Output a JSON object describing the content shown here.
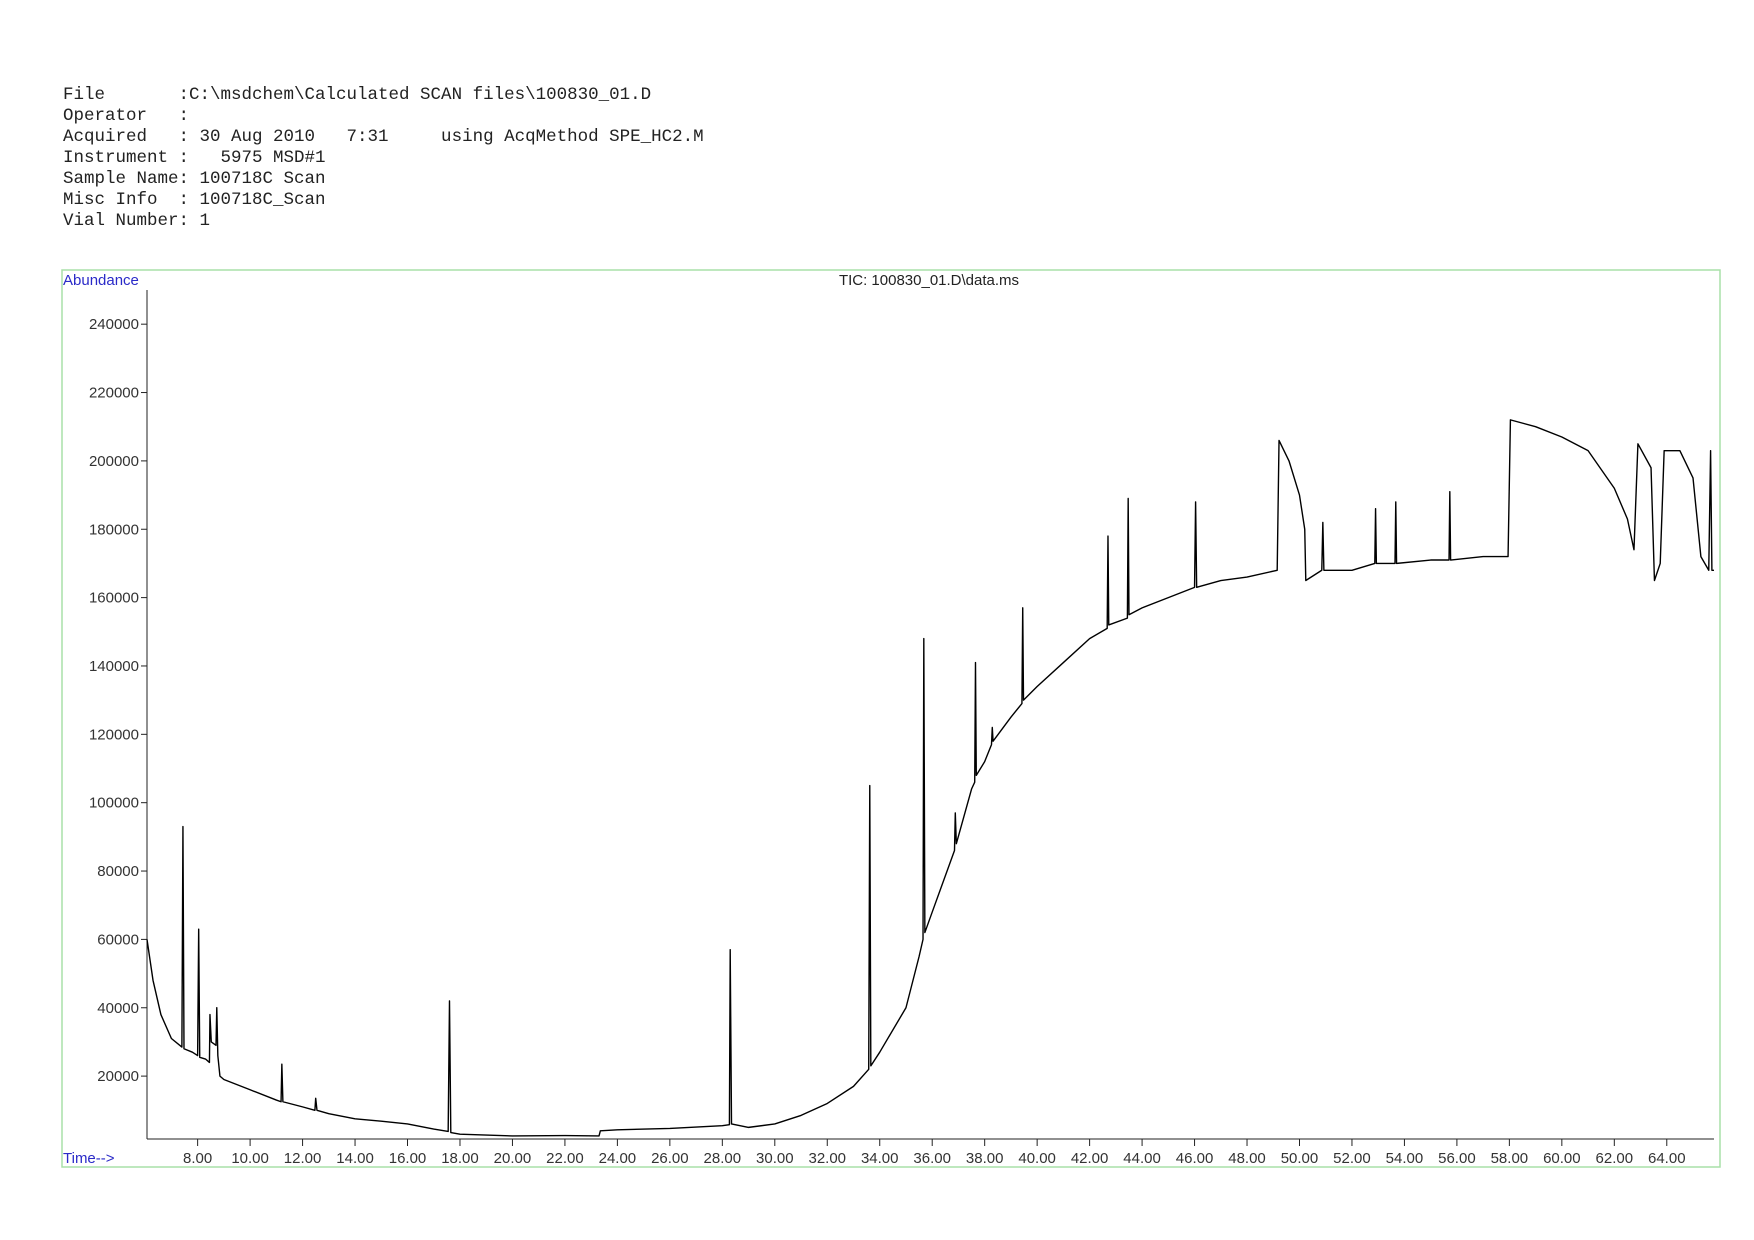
{
  "header": {
    "lines": [
      "File       :C:\\msdchem\\Calculated SCAN files\\100830_01.D",
      "Operator   :",
      "Acquired   : 30 Aug 2010   7:31     using AcqMethod SPE_HC2.M",
      "Instrument :   5975 MSD#1",
      "Sample Name: 100718C Scan",
      "Misc Info  : 100718C_Scan",
      "Vial Number: 1"
    ]
  },
  "chart_data": {
    "type": "line",
    "title": "TIC: 100830_01.D\\data.ms",
    "y_label": "Abundance",
    "x_label": "Time-->",
    "color": "#000000",
    "xlim": [
      6.07,
      65.8
    ],
    "ylim": [
      1600,
      250000
    ],
    "xticks": [
      {
        "value": 8,
        "label": "8.00"
      },
      {
        "value": 10,
        "label": "10.00"
      },
      {
        "value": 12,
        "label": "12.00"
      },
      {
        "value": 14,
        "label": "14.00"
      },
      {
        "value": 16,
        "label": "16.00"
      },
      {
        "value": 18,
        "label": "18.00"
      },
      {
        "value": 20,
        "label": "20.00"
      },
      {
        "value": 22,
        "label": "22.00"
      },
      {
        "value": 24,
        "label": "24.00"
      },
      {
        "value": 26,
        "label": "26.00"
      },
      {
        "value": 28,
        "label": "28.00"
      },
      {
        "value": 30,
        "label": "30.00"
      },
      {
        "value": 32,
        "label": "32.00"
      },
      {
        "value": 34,
        "label": "34.00"
      },
      {
        "value": 36,
        "label": "36.00"
      },
      {
        "value": 38,
        "label": "38.00"
      },
      {
        "value": 40,
        "label": "40.00"
      },
      {
        "value": 42,
        "label": "42.00"
      },
      {
        "value": 44,
        "label": "44.00"
      },
      {
        "value": 46,
        "label": "46.00"
      },
      {
        "value": 48,
        "label": "48.00"
      },
      {
        "value": 50,
        "label": "50.00"
      },
      {
        "value": 52,
        "label": "52.00"
      },
      {
        "value": 54,
        "label": "54.00"
      },
      {
        "value": 56,
        "label": "56.00"
      },
      {
        "value": 58,
        "label": "58.00"
      },
      {
        "value": 60,
        "label": "60.00"
      },
      {
        "value": 62,
        "label": "62.00"
      },
      {
        "value": 64,
        "label": "64.00"
      }
    ],
    "yticks": [
      20000,
      40000,
      60000,
      80000,
      100000,
      120000,
      140000,
      160000,
      180000,
      200000,
      220000,
      240000
    ],
    "x": [
      6.07,
      6.3,
      6.6,
      7.0,
      7.4,
      7.44,
      7.48,
      7.8,
      8.0,
      8.04,
      8.08,
      8.3,
      8.45,
      8.47,
      8.52,
      8.7,
      8.73,
      8.77,
      8.85,
      9.0,
      10.0,
      11.0,
      11.18,
      11.21,
      11.25,
      12.0,
      12.47,
      12.5,
      12.55,
      13.0,
      14.0,
      15.0,
      16.0,
      17.0,
      17.55,
      17.6,
      17.65,
      18.0,
      20.0,
      22.0,
      23.3,
      23.35,
      24.0,
      26.0,
      28.0,
      28.27,
      28.3,
      28.35,
      29.0,
      30.0,
      31.0,
      32.0,
      33.0,
      33.58,
      33.62,
      33.66,
      34.0,
      35.0,
      35.5,
      35.65,
      35.68,
      35.72,
      36.0,
      36.85,
      36.88,
      36.92,
      37.5,
      37.62,
      37.65,
      37.68,
      38.0,
      38.26,
      38.29,
      38.32,
      39.0,
      39.42,
      39.45,
      39.48,
      40.0,
      41.0,
      42.0,
      42.67,
      42.7,
      42.73,
      43.44,
      43.47,
      43.5,
      44.0,
      45.0,
      46.0,
      46.04,
      46.08,
      47.0,
      48.0,
      49.15,
      49.22,
      49.6,
      50.0,
      50.2,
      50.24,
      50.85,
      50.89,
      50.93,
      52.0,
      52.87,
      52.9,
      52.93,
      53.64,
      53.67,
      53.7,
      55.0,
      55.7,
      55.73,
      55.76,
      57.0,
      57.95,
      58.04,
      59.0,
      60.0,
      61.0,
      62.0,
      62.5,
      62.75,
      62.9,
      63.4,
      63.53,
      63.75,
      63.9,
      64.5,
      65.0,
      65.3,
      65.6,
      65.67,
      65.72,
      65.8
    ],
    "values": [
      60000,
      48000,
      38000,
      31000,
      28500,
      93000,
      28000,
      27000,
      26000,
      63000,
      25500,
      25000,
      24000,
      38000,
      30000,
      29000,
      40000,
      26000,
      20000,
      19000,
      16000,
      13000,
      12500,
      23500,
      12500,
      11000,
      10000,
      13500,
      10000,
      9000,
      7500,
      6800,
      6000,
      4500,
      3800,
      42000,
      3500,
      3000,
      2500,
      2600,
      2500,
      4000,
      4300,
      4700,
      5500,
      5800,
      57000,
      6000,
      5000,
      6000,
      8500,
      12000,
      17000,
      22000,
      105000,
      23000,
      27000,
      40000,
      55000,
      60000,
      148000,
      62000,
      68000,
      86000,
      97000,
      88000,
      104000,
      106000,
      141000,
      108000,
      112000,
      117000,
      122000,
      118000,
      125000,
      129000,
      157000,
      130000,
      134000,
      141000,
      148000,
      151000,
      178000,
      152000,
      154000,
      189000,
      155000,
      157000,
      160000,
      163000,
      188000,
      163000,
      165000,
      166000,
      168000,
      206000,
      200000,
      190000,
      180000,
      165000,
      168000,
      182000,
      168000,
      168000,
      170000,
      186000,
      170000,
      170000,
      188000,
      170000,
      171000,
      171000,
      191000,
      171000,
      172000,
      172000,
      212000,
      210000,
      207000,
      203000,
      192000,
      183000,
      174000,
      205000,
      198000,
      165000,
      170000,
      203000,
      203000,
      195000,
      172000,
      168000,
      203000,
      168000,
      168000
    ]
  }
}
